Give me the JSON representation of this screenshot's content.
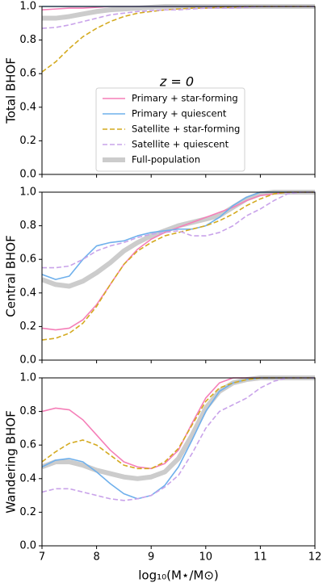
{
  "chart_data": [
    {
      "type": "line",
      "ylabel": "Total BHOF",
      "annotation": "z = 0",
      "legend": "lower center",
      "x": [
        7,
        7.25,
        7.5,
        7.75,
        8,
        8.25,
        8.5,
        8.75,
        9,
        9.25,
        9.5,
        9.75,
        10,
        10.25,
        10.5,
        10.75,
        11,
        11.25,
        11.5,
        11.75,
        12
      ],
      "xlim": [
        7,
        12
      ],
      "xticks": [
        7,
        8,
        9,
        10,
        11,
        12
      ],
      "ylim": [
        0,
        1
      ],
      "yticks": [
        {
          "value": 0,
          "label": "0.0"
        },
        0.2,
        0.4,
        0.6,
        0.8,
        {
          "value": 1,
          "label": "1.0"
        }
      ],
      "series": [
        {
          "name": "Primary + star-forming",
          "color": "#f57fb8",
          "style": "solid",
          "width": 1.6,
          "values": [
            0.98,
            0.985,
            0.99,
            0.99,
            0.995,
            1,
            1,
            1,
            1,
            1,
            1,
            1,
            1,
            1,
            1,
            1,
            1,
            1,
            1,
            1,
            1
          ]
        },
        {
          "name": "Primary + quiescent",
          "color": "#6fb0ec",
          "style": "solid",
          "width": 1.6,
          "values": [
            1,
            1,
            1,
            1,
            1,
            1,
            1,
            1,
            1,
            1,
            1,
            1,
            1,
            1,
            1,
            1,
            1,
            1,
            1,
            1,
            1
          ]
        },
        {
          "name": "Satellite + star-forming",
          "color": "#d4aa1f",
          "style": "dashed",
          "width": 1.6,
          "values": [
            0.61,
            0.67,
            0.75,
            0.82,
            0.87,
            0.91,
            0.94,
            0.96,
            0.97,
            0.98,
            0.985,
            0.99,
            0.99,
            0.995,
            0.995,
            1,
            1,
            1,
            1,
            1,
            1
          ]
        },
        {
          "name": "Satellite + quiescent",
          "color": "#c9a3ea",
          "style": "dashed",
          "width": 1.6,
          "values": [
            0.87,
            0.875,
            0.89,
            0.91,
            0.93,
            0.95,
            0.96,
            0.97,
            0.975,
            0.98,
            0.98,
            0.985,
            0.99,
            0.99,
            0.99,
            0.995,
            1,
            1,
            1,
            1,
            1
          ]
        },
        {
          "name": "Full-population",
          "color": "#cccccc",
          "style": "solid",
          "width": 6,
          "values": [
            0.93,
            0.93,
            0.94,
            0.955,
            0.97,
            0.98,
            0.985,
            0.99,
            0.995,
            1,
            1,
            1,
            1,
            1,
            1,
            1,
            1,
            1,
            1,
            1,
            1
          ]
        }
      ]
    },
    {
      "type": "line",
      "ylabel": "Central BHOF",
      "x": [
        7,
        7.25,
        7.5,
        7.75,
        8,
        8.25,
        8.5,
        8.75,
        9,
        9.25,
        9.5,
        9.75,
        10,
        10.25,
        10.5,
        10.75,
        11,
        11.25,
        11.5,
        11.75,
        12
      ],
      "xlim": [
        7,
        12
      ],
      "xticks": [
        7,
        8,
        9,
        10,
        11,
        12
      ],
      "ylim": [
        0,
        1
      ],
      "yticks": [
        {
          "value": 0,
          "label": "0.0"
        },
        0.2,
        0.4,
        0.6,
        0.8,
        {
          "value": 1,
          "label": "1.0"
        }
      ],
      "series": [
        {
          "color": "#f57fb8",
          "style": "solid",
          "width": 1.6,
          "values": [
            0.19,
            0.18,
            0.19,
            0.24,
            0.33,
            0.45,
            0.57,
            0.66,
            0.72,
            0.76,
            0.79,
            0.82,
            0.85,
            0.88,
            0.91,
            0.95,
            0.98,
            0.99,
            1,
            1,
            1
          ]
        },
        {
          "color": "#6fb0ec",
          "style": "solid",
          "width": 1.6,
          "values": [
            0.51,
            0.48,
            0.5,
            0.6,
            0.68,
            0.7,
            0.71,
            0.74,
            0.76,
            0.77,
            0.78,
            0.78,
            0.8,
            0.85,
            0.92,
            0.97,
            1,
            1,
            1,
            1,
            1
          ]
        },
        {
          "color": "#d4aa1f",
          "style": "dashed",
          "width": 1.6,
          "values": [
            0.12,
            0.13,
            0.16,
            0.22,
            0.32,
            0.45,
            0.57,
            0.65,
            0.7,
            0.74,
            0.76,
            0.78,
            0.8,
            0.83,
            0.87,
            0.92,
            0.96,
            0.99,
            1,
            1,
            1
          ]
        },
        {
          "color": "#c9a3ea",
          "style": "dashed",
          "width": 1.6,
          "values": [
            0.55,
            0.55,
            0.56,
            0.6,
            0.65,
            0.68,
            0.7,
            0.73,
            0.75,
            0.76,
            0.77,
            0.74,
            0.74,
            0.76,
            0.8,
            0.86,
            0.9,
            0.95,
            0.99,
            1,
            1
          ]
        },
        {
          "color": "#cccccc",
          "style": "solid",
          "width": 6,
          "values": [
            0.48,
            0.45,
            0.44,
            0.47,
            0.52,
            0.58,
            0.65,
            0.7,
            0.74,
            0.77,
            0.8,
            0.82,
            0.84,
            0.86,
            0.91,
            0.96,
            0.99,
            1,
            1,
            1,
            1
          ]
        }
      ]
    },
    {
      "type": "line",
      "ylabel": "Wandering BHOF",
      "xlabel": "log₁₀(M⋆/M⊙)",
      "x": [
        7,
        7.25,
        7.5,
        7.75,
        8,
        8.25,
        8.5,
        8.75,
        9,
        9.25,
        9.5,
        9.75,
        10,
        10.25,
        10.5,
        10.75,
        11,
        11.25,
        11.5,
        11.75,
        12
      ],
      "xlim": [
        7,
        12
      ],
      "xticks": [
        7,
        8,
        9,
        10,
        11,
        12
      ],
      "ylim": [
        0,
        1
      ],
      "yticks": [
        {
          "value": 0,
          "label": "0.0"
        },
        0.2,
        0.4,
        0.6,
        0.8,
        {
          "value": 1,
          "label": "1.0"
        }
      ],
      "series": [
        {
          "color": "#f57fb8",
          "style": "solid",
          "width": 1.6,
          "values": [
            0.8,
            0.82,
            0.81,
            0.75,
            0.66,
            0.57,
            0.5,
            0.47,
            0.46,
            0.49,
            0.57,
            0.73,
            0.88,
            0.97,
            1,
            1,
            1,
            1,
            1,
            1,
            1
          ]
        },
        {
          "color": "#6fb0ec",
          "style": "solid",
          "width": 1.6,
          "values": [
            0.47,
            0.51,
            0.52,
            0.5,
            0.44,
            0.37,
            0.31,
            0.28,
            0.3,
            0.36,
            0.47,
            0.63,
            0.8,
            0.92,
            0.97,
            0.99,
            1,
            1,
            1,
            1,
            1
          ]
        },
        {
          "color": "#d4aa1f",
          "style": "dashed",
          "width": 1.6,
          "values": [
            0.5,
            0.56,
            0.61,
            0.63,
            0.6,
            0.54,
            0.48,
            0.46,
            0.46,
            0.5,
            0.58,
            0.72,
            0.86,
            0.94,
            0.97,
            0.99,
            1,
            1,
            1,
            1,
            1
          ]
        },
        {
          "color": "#c9a3ea",
          "style": "dashed",
          "width": 1.6,
          "values": [
            0.32,
            0.34,
            0.34,
            0.32,
            0.3,
            0.28,
            0.27,
            0.28,
            0.3,
            0.35,
            0.42,
            0.55,
            0.7,
            0.8,
            0.84,
            0.88,
            0.94,
            0.98,
            1,
            1,
            1
          ]
        },
        {
          "color": "#cccccc",
          "style": "solid",
          "width": 6,
          "values": [
            0.47,
            0.5,
            0.5,
            0.48,
            0.45,
            0.43,
            0.41,
            0.4,
            0.41,
            0.44,
            0.52,
            0.66,
            0.82,
            0.92,
            0.97,
            0.99,
            1,
            1,
            1,
            1,
            1
          ]
        }
      ]
    }
  ]
}
